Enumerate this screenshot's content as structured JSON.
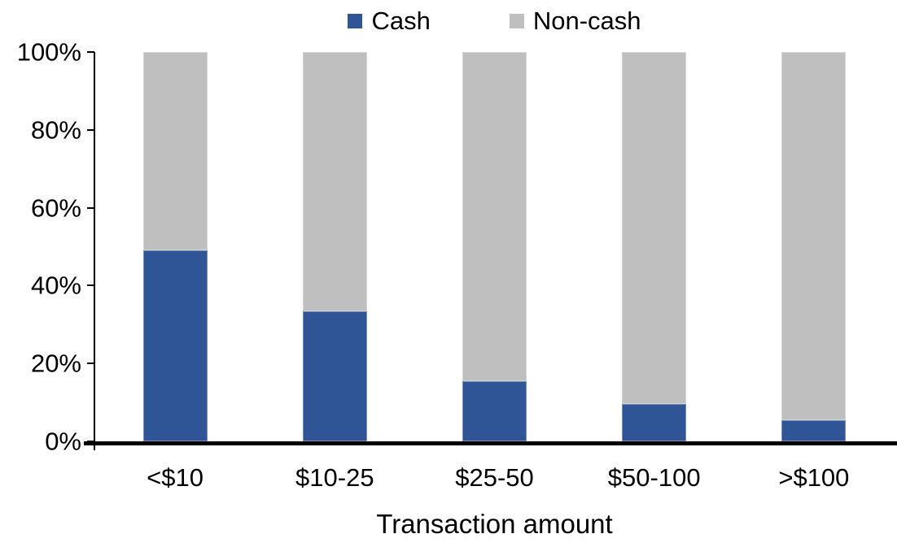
{
  "chart_data": {
    "type": "bar",
    "stacked": true,
    "percent_stacked": true,
    "categories": [
      "<$10",
      "$10-25",
      "$25-50",
      "$50-100",
      ">$100"
    ],
    "series": [
      {
        "name": "Cash",
        "color": "#2F5597",
        "values": [
          49,
          33.5,
          15.5,
          9.5,
          5.5
        ]
      },
      {
        "name": "Non-cash",
        "color": "#BFBFBF",
        "values": [
          51,
          66.5,
          84.5,
          90.5,
          94.5
        ]
      }
    ],
    "title": "",
    "xlabel": "Transaction amount",
    "ylabel": "",
    "ylim": [
      0,
      100
    ],
    "yticks": [
      0,
      20,
      40,
      60,
      80,
      100
    ],
    "ytick_suffix": "%",
    "legend_position": "top",
    "grid": false,
    "axis_color": "#000000",
    "background_color": "#FFFFFF"
  }
}
